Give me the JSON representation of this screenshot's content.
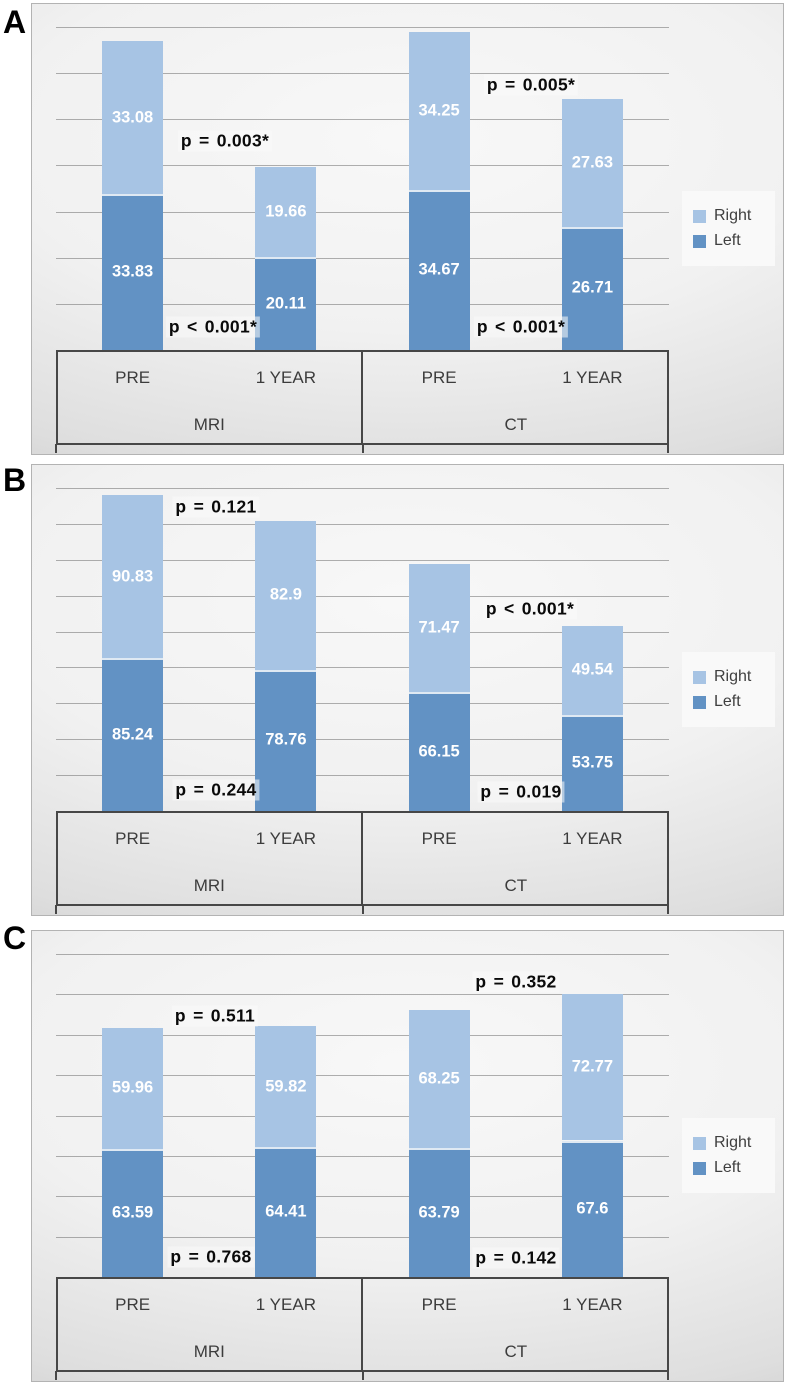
{
  "figure": {
    "colors": {
      "right": "#a7c4e4",
      "left": "#6292c4",
      "grid": "#696969",
      "axis_box": "#474747",
      "annotation": "#0a0a0a",
      "bar_label": "#ffffff",
      "category_label": "#3c3c3c"
    },
    "legend": {
      "items": [
        {
          "key": "right",
          "label": "Right"
        },
        {
          "key": "left",
          "label": "Left"
        }
      ]
    }
  },
  "chart_data": [
    {
      "panel": "A",
      "type": "bar",
      "subtype": "stacked",
      "ylim": [
        0,
        70
      ],
      "grid_step": 10,
      "grid": true,
      "legend_position": "right",
      "group_labels": [
        "MRI",
        "CT"
      ],
      "categories": [
        "PRE",
        "1 YEAR",
        "PRE",
        "1 YEAR"
      ],
      "series": [
        {
          "name": "Right",
          "key": "right",
          "values": [
            "33.08",
            "19.66",
            "34.25",
            "27.63"
          ]
        },
        {
          "name": "Left",
          "key": "left",
          "values": [
            "33.83",
            "20.11",
            "34.67",
            "26.71"
          ]
        }
      ],
      "annotations": [
        {
          "text": "p = 0.003*",
          "x": 193,
          "y": 137
        },
        {
          "text": "p < 0.001*",
          "x": 181,
          "y": 323
        },
        {
          "text": "p = 0.005*",
          "x": 499,
          "y": 81
        },
        {
          "text": "p < 0.001*",
          "x": 489,
          "y": 323
        }
      ]
    },
    {
      "panel": "B",
      "type": "bar",
      "subtype": "stacked",
      "ylim": [
        0,
        180
      ],
      "grid_step": 20,
      "grid": true,
      "legend_position": "right",
      "group_labels": [
        "MRI",
        "CT"
      ],
      "categories": [
        "PRE",
        "1 YEAR",
        "PRE",
        "1 YEAR"
      ],
      "series": [
        {
          "name": "Right",
          "key": "right",
          "values": [
            "90.83",
            "82.9",
            "71.47",
            "49.54"
          ]
        },
        {
          "name": "Left",
          "key": "left",
          "values": [
            "85.24",
            "78.76",
            "66.15",
            "53.75"
          ]
        }
      ],
      "annotations": [
        {
          "text": "p = 0.121",
          "x": 184,
          "y": 42
        },
        {
          "text": "p = 0.244",
          "x": 184,
          "y": 325
        },
        {
          "text": "p < 0.001*",
          "x": 498,
          "y": 144
        },
        {
          "text": "p = 0.019",
          "x": 489,
          "y": 327
        }
      ]
    },
    {
      "panel": "C",
      "type": "bar",
      "subtype": "stacked",
      "ylim": [
        0,
        160
      ],
      "grid_step": 20,
      "grid": true,
      "legend_position": "right",
      "group_labels": [
        "MRI",
        "CT"
      ],
      "categories": [
        "PRE",
        "1 YEAR",
        "PRE",
        "1 YEAR"
      ],
      "series": [
        {
          "name": "Right",
          "key": "right",
          "values": [
            "59.96",
            "59.82",
            "68.25",
            "72.77"
          ]
        },
        {
          "name": "Left",
          "key": "left",
          "values": [
            "63.59",
            "64.41",
            "63.79",
            "67.6"
          ]
        }
      ],
      "annotations": [
        {
          "text": "p = 0.511",
          "x": 183,
          "y": 85
        },
        {
          "text": "p = 0.768",
          "x": 179,
          "y": 326
        },
        {
          "text": "p = 0.352",
          "x": 484,
          "y": 51
        },
        {
          "text": "p = 0.142",
          "x": 484,
          "y": 327
        }
      ]
    }
  ]
}
